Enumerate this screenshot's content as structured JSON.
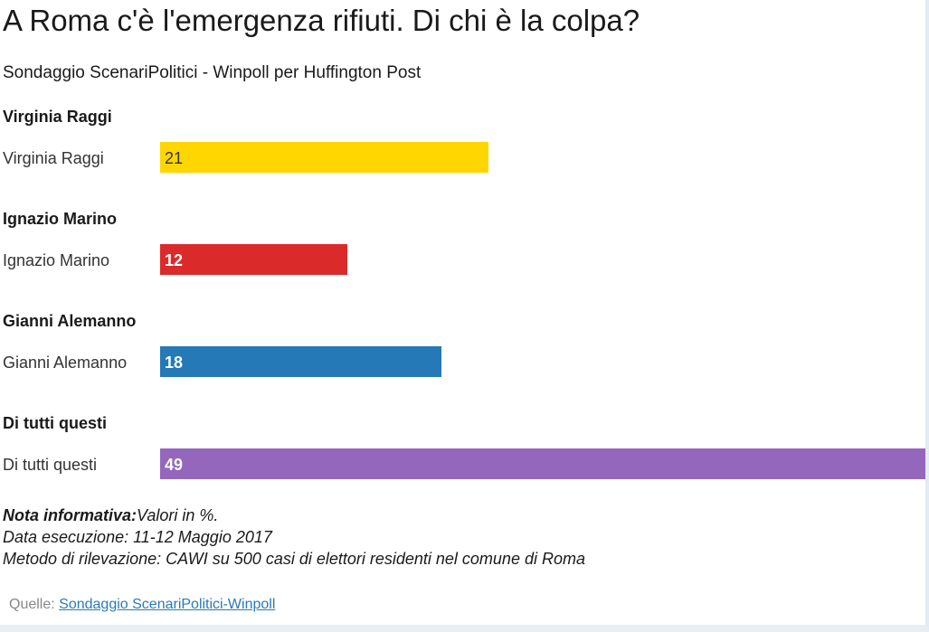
{
  "chart_data": {
    "type": "bar",
    "orientation": "horizontal",
    "title": "A Roma c'è l'emergenza rifiuti. Di chi è la colpa?",
    "subtitle": "Sondaggio ScenariPolitici - Winpoll per Huffington Post",
    "categories": [
      "Virginia Raggi",
      "Ignazio Marino",
      "Gianni Alemanno",
      "Di tutti questi"
    ],
    "group_headings": [
      "Virginia Raggi",
      "Ignazio Marino",
      "Gianni Alemanno",
      "Di tutti questi"
    ],
    "values": [
      21,
      12,
      18,
      49
    ],
    "colors": [
      "#ffd600",
      "#db2a2a",
      "#2479b6",
      "#9467bd"
    ],
    "value_label_colors": [
      "#333333",
      "#ffffff",
      "#ffffff",
      "#ffffff"
    ],
    "xlim": [
      0,
      49
    ],
    "grid": false,
    "legend": "none"
  },
  "note": {
    "label": "Nota informativa:",
    "text": "Valori in %.",
    "date": "Data esecuzione: 11-12 Maggio 2017",
    "method": "Metodo di rilevazione: CAWI su 500 casi di elettori residenti nel comune di Roma"
  },
  "source": {
    "label": "Quelle:",
    "link_text": "Sondaggio ScenariPolitici-Winpoll"
  }
}
